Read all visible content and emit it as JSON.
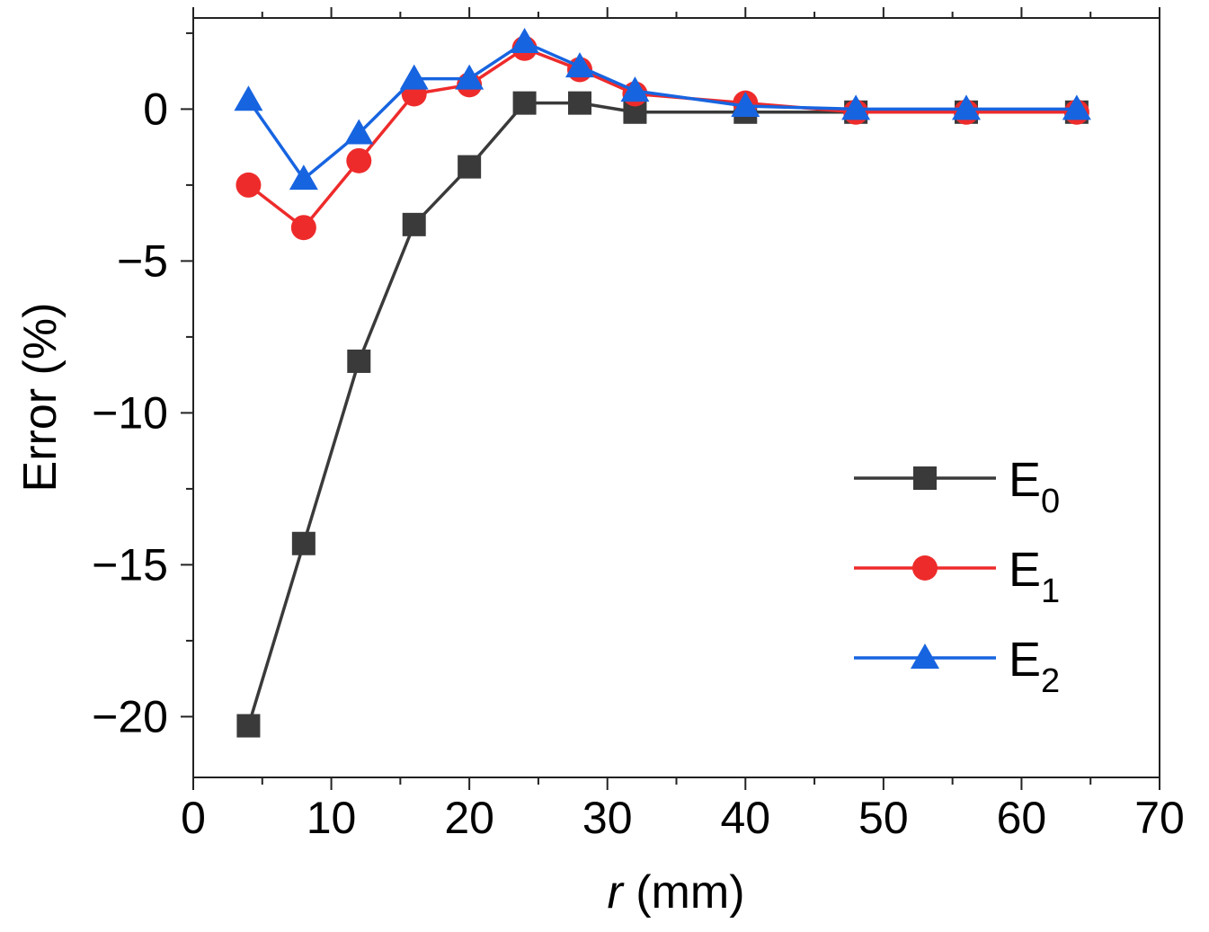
{
  "chart_data": {
    "type": "line",
    "title": "",
    "xlabel": {
      "var": "r",
      "unit": " (mm)"
    },
    "ylabel": "Error (%)",
    "xlim": [
      0,
      70
    ],
    "ylim": [
      -22,
      3
    ],
    "x_ticks": [
      0,
      10,
      20,
      30,
      40,
      50,
      60,
      70
    ],
    "y_ticks": [
      0,
      -5,
      -10,
      -15,
      -20
    ],
    "y_tick_labels": [
      "0",
      "−5",
      "−10",
      "−15",
      "−20"
    ],
    "legend_position": "right-middle",
    "grid": false,
    "series": [
      {
        "name": "E0",
        "label_main": "E",
        "label_sub": "0",
        "color": "#3a3a3a",
        "marker": "square",
        "x": [
          4,
          8,
          12,
          16,
          20,
          24,
          28,
          32,
          40,
          48,
          56,
          64
        ],
        "y": [
          -20.3,
          -14.3,
          -8.3,
          -3.8,
          -1.9,
          0.2,
          0.2,
          -0.1,
          -0.1,
          -0.1,
          -0.1,
          -0.1
        ]
      },
      {
        "name": "E1",
        "label_main": "E",
        "label_sub": "1",
        "color": "#ee2b2b",
        "marker": "circle",
        "x": [
          4,
          8,
          12,
          16,
          20,
          24,
          28,
          32,
          40,
          48,
          56,
          64
        ],
        "y": [
          -2.5,
          -3.9,
          -1.7,
          0.5,
          0.8,
          2.0,
          1.3,
          0.5,
          0.2,
          -0.1,
          -0.1,
          -0.1
        ]
      },
      {
        "name": "E2",
        "label_main": "E",
        "label_sub": "2",
        "color": "#1764e0",
        "marker": "triangle",
        "x": [
          4,
          8,
          12,
          16,
          20,
          24,
          28,
          32,
          40,
          48,
          56,
          64
        ],
        "y": [
          0.3,
          -2.3,
          -0.8,
          1.0,
          1.0,
          2.2,
          1.4,
          0.6,
          0.1,
          0.0,
          0.0,
          0.0
        ]
      }
    ]
  }
}
